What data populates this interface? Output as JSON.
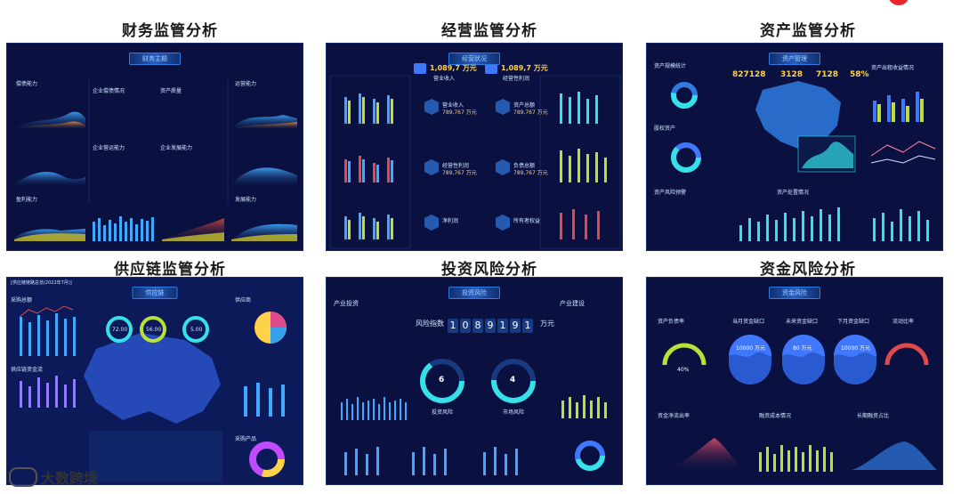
{
  "titles": [
    "财务监管分析",
    "经营监管分析",
    "资产监管分析",
    "供应链监管分析",
    "投资风险分析",
    "资金风险分析"
  ],
  "panels": {
    "finance": {
      "tag": "财务主题",
      "labels": [
        "偿债能力",
        "企业偿债情况",
        "资产质量",
        "运营能力",
        "企业营运能力",
        "企业发展能力",
        "盈利能力",
        "发展能力"
      ]
    },
    "operation": {
      "tag": "经营状况",
      "kpi1": "1,089,7 万元",
      "kpi2": "1,089,7 万元",
      "kpi1_label": "营业收入",
      "kpi2_label": "经营性利润",
      "rows": [
        "营业收入",
        "经营性利润",
        "净利润",
        "资产总额",
        "负债总额",
        "所有者权益"
      ],
      "value": "789,767 万元"
    },
    "assets": {
      "tag": "资产管理",
      "counters": [
        "827128",
        "3128",
        "7128",
        "58%"
      ],
      "labels": [
        "资产规模统计",
        "股权资产",
        "资产风险预警",
        "资产处置情况",
        "资产出租收益情况"
      ]
    },
    "supply": {
      "tag": "供应链",
      "header": "[供应链链路总览(2022年7月)]",
      "circles": [
        "72.00",
        "56.00",
        "5.00"
      ],
      "labels": [
        "采购总额",
        "供应链资金流",
        "供应商",
        "采购产品"
      ]
    },
    "invest": {
      "tag": "投资风险",
      "risk_label": "风险指数",
      "digits": [
        "1",
        "0",
        "8",
        "9",
        "1",
        "9",
        "1"
      ],
      "unit": "万元",
      "gauge1": "6",
      "gauge2": "4",
      "gauge1_label": "投资风险",
      "gauge2_label": "市场风险",
      "left_title": "产业投资",
      "right_title": "产业建设"
    },
    "fund": {
      "tag": "资金风险",
      "labels": [
        "资产负债率",
        "当月资金缺口",
        "未来资金缺口",
        "下月资金缺口",
        "流动比率",
        "资金净流出率",
        "融资成本情况",
        "长期融资占比"
      ],
      "circles": [
        "10000 万元",
        "80 万元",
        "10000 万元"
      ],
      "gauge": "40%"
    }
  },
  "brand": {
    "text": "大数跨境"
  },
  "colors": {
    "panel_bg": "#0a1140",
    "accent": "#2f7be0",
    "gold": "#ffd24a",
    "cyan": "#35e0e8"
  }
}
